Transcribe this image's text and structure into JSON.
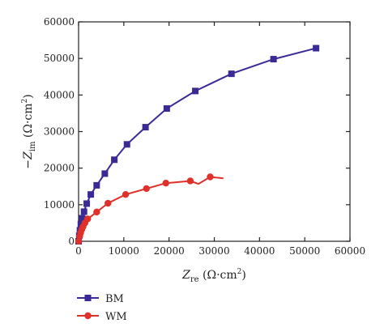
{
  "chart_data": {
    "type": "scatter",
    "xlabel": {
      "var": "Z",
      "sub": "re",
      "unit_open": " (Ω·cm",
      "unit_sup": "2",
      "unit_close": ")"
    },
    "ylabel": {
      "prefix": "−",
      "var": "Z",
      "sub": "im",
      "unit_open": " (Ω·cm",
      "unit_sup": "2",
      "unit_close": ")"
    },
    "xlim": [
      0,
      60000
    ],
    "ylim": [
      0,
      60000
    ],
    "xticks": [
      0,
      10000,
      20000,
      30000,
      40000,
      50000,
      60000
    ],
    "yticks": [
      0,
      10000,
      20000,
      30000,
      40000,
      50000,
      60000
    ],
    "legend_placement": "bottom-left, below plot",
    "series": [
      {
        "name": "BM",
        "color": "#3a2a96",
        "marker": "square",
        "points": [
          [
            0,
            0
          ],
          [
            150,
            1500
          ],
          [
            300,
            3000
          ],
          [
            500,
            4700
          ],
          [
            800,
            6300
          ],
          [
            1200,
            8100
          ],
          [
            1800,
            10300
          ],
          [
            2700,
            12800
          ],
          [
            4000,
            15300
          ],
          [
            5800,
            18500
          ],
          [
            7900,
            22300
          ],
          [
            10700,
            26500
          ],
          [
            14800,
            31200
          ],
          [
            19500,
            36300
          ],
          [
            25800,
            41100
          ],
          [
            33800,
            45800
          ],
          [
            43100,
            49800
          ],
          [
            52500,
            52800
          ]
        ]
      },
      {
        "name": "WM",
        "color": "#e0302a",
        "marker": "circle",
        "points": [
          [
            0,
            0
          ],
          [
            100,
            500
          ],
          [
            250,
            1400
          ],
          [
            450,
            2300
          ],
          [
            700,
            3200
          ],
          [
            1000,
            4000
          ],
          [
            1400,
            5000
          ],
          [
            2000,
            6100
          ],
          [
            4000,
            8000
          ],
          [
            6500,
            10400
          ],
          [
            10400,
            12800
          ],
          [
            15000,
            14400
          ],
          [
            19300,
            15900
          ],
          [
            24700,
            16500
          ],
          [
            26500,
            15700
          ],
          [
            29100,
            17600
          ],
          [
            32000,
            17200
          ]
        ],
        "marked_points": [
          [
            0,
            0
          ],
          [
            250,
            1400
          ],
          [
            450,
            2300
          ],
          [
            700,
            3200
          ],
          [
            1000,
            4000
          ],
          [
            1400,
            5000
          ],
          [
            2000,
            6100
          ],
          [
            4000,
            8000
          ],
          [
            6500,
            10400
          ],
          [
            10400,
            12800
          ],
          [
            15000,
            14400
          ],
          [
            19300,
            15900
          ],
          [
            24700,
            16500
          ],
          [
            29100,
            17600
          ]
        ]
      }
    ]
  }
}
